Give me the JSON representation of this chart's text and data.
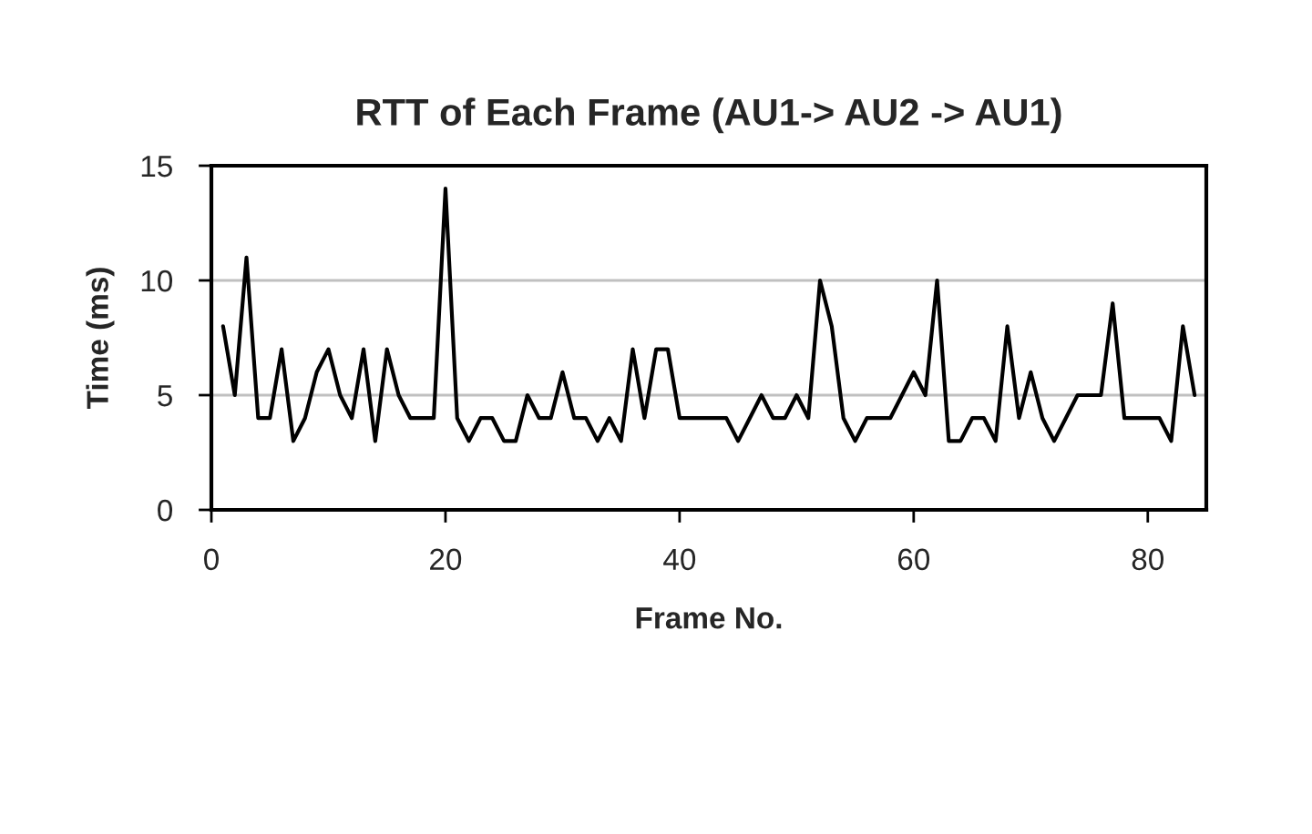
{
  "chart_data": {
    "type": "line",
    "title": "RTT of Each Frame (AU1-> AU2 -> AU1)",
    "xlabel": "Frame No.",
    "ylabel": "Time (ms)",
    "x": [
      1,
      2,
      3,
      4,
      5,
      6,
      7,
      8,
      9,
      10,
      11,
      12,
      13,
      14,
      15,
      16,
      17,
      18,
      19,
      20,
      21,
      22,
      23,
      24,
      25,
      26,
      27,
      28,
      29,
      30,
      31,
      32,
      33,
      34,
      35,
      36,
      37,
      38,
      39,
      40,
      41,
      42,
      43,
      44,
      45,
      46,
      47,
      48,
      49,
      50,
      51,
      52,
      53,
      54,
      55,
      56,
      57,
      58,
      59,
      60,
      61,
      62,
      63,
      64,
      65,
      66,
      67,
      68,
      69,
      70,
      71,
      72,
      73,
      74,
      75,
      76,
      77,
      78,
      79,
      80,
      81,
      82,
      83,
      84
    ],
    "series": [
      {
        "color": "#000000",
        "values": [
          8,
          5,
          11,
          4,
          4,
          7,
          3,
          4,
          6,
          7,
          5,
          4,
          7,
          3,
          7,
          5,
          4,
          4,
          4,
          14,
          4,
          3,
          4,
          4,
          3,
          3,
          5,
          4,
          4,
          6,
          4,
          4,
          3,
          4,
          3,
          7,
          4,
          7,
          7,
          4,
          4,
          4,
          4,
          4,
          3,
          4,
          5,
          4,
          4,
          5,
          4,
          10,
          8,
          4,
          3,
          4,
          4,
          4,
          5,
          6,
          5,
          10,
          3,
          3,
          4,
          4,
          3,
          8,
          4,
          6,
          4,
          3,
          4,
          5,
          5,
          5,
          9,
          4,
          4,
          4,
          4,
          3,
          8,
          5
        ]
      }
    ],
    "xlim": [
      0,
      85
    ],
    "xticks": [
      0,
      20,
      40,
      60,
      80
    ],
    "ylim": [
      0,
      15
    ],
    "yticks": [
      0,
      5,
      10,
      15
    ],
    "grid": "y",
    "marker": "none",
    "line_style": "solid"
  }
}
